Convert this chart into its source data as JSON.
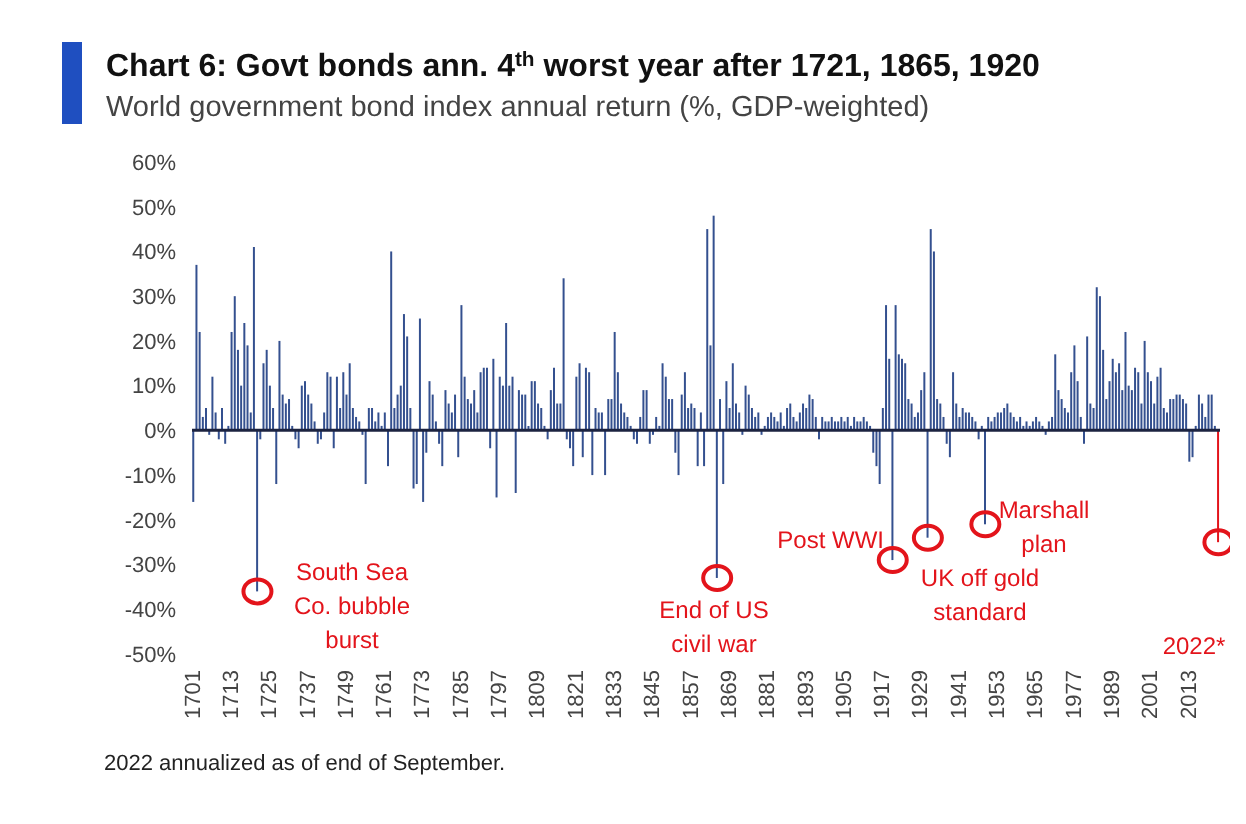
{
  "chart_data": {
    "type": "bar",
    "title": "Chart 6: Govt bonds ann. 4$^{th}$ worst year after 1721, 1865, 1920",
    "subtitle": "World government bond index annual return (%, GDP-weighted)",
    "annotations": [
      "South Sea Co. bubble burst",
      "End of US civil war",
      "Post WWI",
      "UK off gold standard",
      "Marshall plan",
      "2022*",
      "2022 annualized as of end of September."
    ],
    "categories": [
      "1701",
      null,
      null,
      null,
      null,
      null,
      null,
      null,
      null,
      null,
      null,
      null,
      "1713",
      null,
      null,
      null,
      null,
      null,
      null,
      null,
      null,
      null,
      null,
      null,
      "1725",
      null,
      null,
      null,
      null,
      null,
      null,
      null,
      null,
      null,
      null,
      null,
      "1737",
      null,
      null,
      null,
      null,
      null,
      null,
      null,
      null,
      null,
      null,
      null,
      "1749",
      null,
      null,
      null,
      null,
      null,
      null,
      null,
      null,
      null,
      null,
      null,
      "1761",
      null,
      null,
      null,
      null,
      null,
      null,
      null,
      null,
      null,
      null,
      null,
      "1773",
      null,
      null,
      null,
      null,
      null,
      null,
      null,
      null,
      null,
      null,
      null,
      "1785",
      null,
      null,
      null,
      null,
      null,
      null,
      null,
      null,
      null,
      null,
      null,
      "1797",
      null,
      null,
      null,
      null,
      null,
      null,
      null,
      null,
      null,
      null,
      null,
      "1809",
      null,
      null,
      null,
      null,
      null,
      null,
      null,
      null,
      null,
      null,
      null,
      "1821",
      null,
      null,
      null,
      null,
      null,
      null,
      null,
      null,
      null,
      null,
      null,
      "1833",
      null,
      null,
      null,
      null,
      null,
      null,
      null,
      null,
      null,
      null,
      null,
      "1845",
      null,
      null,
      null,
      null,
      null,
      null,
      null,
      null,
      null,
      null,
      null,
      "1857",
      null,
      null,
      null,
      null,
      null,
      null,
      null,
      null,
      null,
      null,
      null,
      "1869",
      null,
      null,
      null,
      null,
      null,
      null,
      null,
      null,
      null,
      null,
      null,
      "1881",
      null,
      null,
      null,
      null,
      null,
      null,
      null,
      null,
      null,
      null,
      null,
      "1893",
      null,
      null,
      null,
      null,
      null,
      null,
      null,
      null,
      null,
      null,
      null,
      "1905",
      null,
      null,
      null,
      null,
      null,
      null,
      null,
      null,
      null,
      null,
      null,
      "1917",
      null,
      null,
      null,
      null,
      null,
      null,
      null,
      null,
      null,
      null,
      null,
      "1929",
      null,
      null,
      null,
      null,
      null,
      null,
      null,
      null,
      null,
      null,
      null,
      "1941",
      null,
      null,
      null,
      null,
      null,
      null,
      null,
      null,
      null,
      null,
      null,
      "1953",
      null,
      null,
      null,
      null,
      null,
      null,
      null,
      null,
      null,
      null,
      null,
      "1965",
      null,
      null,
      null,
      null,
      null,
      null,
      null,
      null,
      null,
      null,
      null,
      "1977",
      null,
      null,
      null,
      null,
      null,
      null,
      null,
      null,
      null,
      null,
      null,
      "1989",
      null,
      null,
      null,
      null,
      null,
      null,
      null,
      null,
      null,
      null,
      null,
      "2001",
      null,
      null,
      null,
      null,
      null,
      null,
      null,
      null,
      null,
      null,
      null,
      "2013",
      null,
      null,
      null,
      null,
      null,
      null,
      null,
      null,
      null
    ],
    "values": [
      -16,
      37,
      22,
      3,
      5,
      -1,
      12,
      4,
      -2,
      5,
      -3,
      1,
      22,
      30,
      18,
      10,
      24,
      19,
      4,
      41,
      -36,
      -2,
      15,
      18,
      10,
      5,
      -12,
      20,
      8,
      6,
      7,
      1,
      -2,
      -4,
      10,
      11,
      8,
      6,
      2,
      -3,
      -2,
      4,
      13,
      12,
      -4,
      12,
      5,
      13,
      8,
      15,
      5,
      3,
      2,
      -1,
      -12,
      5,
      5,
      2,
      4,
      1,
      4,
      -8,
      40,
      5,
      8,
      10,
      26,
      21,
      5,
      -13,
      -12,
      25,
      -16,
      -5,
      11,
      8,
      2,
      -3,
      -8,
      9,
      6,
      4,
      8,
      -6,
      28,
      12,
      7,
      6,
      9,
      4,
      13,
      14,
      14,
      -4,
      16,
      -15,
      12,
      10,
      24,
      10,
      12,
      -14,
      9,
      8,
      8,
      1,
      11,
      11,
      6,
      5,
      1,
      -2,
      9,
      14,
      6,
      6,
      34,
      -2,
      -4,
      -8,
      12,
      15,
      -6,
      14,
      13,
      -10,
      5,
      4,
      4,
      -10,
      7,
      7,
      22,
      13,
      6,
      4,
      3,
      1,
      -2,
      -3,
      3,
      9,
      9,
      -3,
      -1,
      3,
      1,
      15,
      12,
      7,
      7,
      -5,
      -10,
      8,
      13,
      5,
      6,
      5,
      -8,
      4,
      -8,
      45,
      19,
      48,
      -33,
      7,
      -12,
      11,
      5,
      15,
      6,
      4,
      -1,
      10,
      8,
      5,
      3,
      4,
      -1,
      1,
      3,
      4,
      3,
      2,
      4,
      1,
      5,
      6,
      3,
      2,
      4,
      6,
      5,
      8,
      7,
      3,
      -2,
      3,
      2,
      2,
      3,
      2,
      2,
      3,
      2,
      3,
      1,
      3,
      2,
      2,
      3,
      2,
      1,
      -5,
      -8,
      -12,
      5,
      28,
      16,
      -29,
      28,
      17,
      16,
      15,
      7,
      6,
      3,
      4,
      9,
      13,
      -24,
      45,
      40,
      7,
      6,
      3,
      -3,
      -6,
      13,
      6,
      3,
      5,
      4,
      4,
      3,
      2,
      -2,
      1,
      -21,
      3,
      2,
      3,
      4,
      4,
      5,
      6,
      4,
      3,
      2,
      3,
      1,
      2,
      1,
      2,
      3,
      2,
      1,
      -1,
      2,
      3,
      17,
      9,
      7,
      5,
      4,
      13,
      19,
      11,
      3,
      -3,
      21,
      6,
      5,
      32,
      30,
      18,
      7,
      11,
      16,
      13,
      15,
      9,
      22,
      10,
      9,
      14,
      13,
      6,
      20,
      13,
      11,
      6,
      12,
      14,
      5,
      4,
      7,
      7,
      8,
      8,
      7,
      6,
      -7,
      -6,
      1,
      8,
      6,
      3,
      8,
      8,
      1,
      -25
    ],
    "colors": [
      "#34508f",
      "#34508f",
      "#34508f",
      "#34508f",
      "#34508f",
      "#34508f",
      "#34508f",
      "#34508f",
      "#34508f",
      "#34508f",
      "#34508f",
      "#34508f",
      "#34508f",
      "#34508f",
      "#34508f",
      "#34508f",
      "#34508f",
      "#34508f",
      "#34508f",
      "#34508f",
      "#34508f",
      "#34508f",
      "#34508f",
      "#34508f",
      "#34508f",
      "#34508f",
      "#34508f",
      "#34508f",
      "#34508f",
      "#34508f",
      "#34508f",
      "#34508f",
      "#34508f",
      "#34508f",
      "#34508f",
      "#34508f",
      "#34508f",
      "#34508f",
      "#34508f",
      "#34508f",
      "#34508f",
      "#34508f",
      "#34508f",
      "#34508f",
      "#34508f",
      "#34508f",
      "#34508f",
      "#34508f",
      "#34508f",
      "#34508f",
      "#34508f",
      "#34508f",
      "#34508f",
      "#34508f",
      "#34508f",
      "#34508f",
      "#34508f",
      "#34508f",
      "#34508f",
      "#34508f",
      "#34508f",
      "#34508f",
      "#34508f",
      "#34508f",
      "#34508f",
      "#34508f",
      "#34508f",
      "#34508f",
      "#34508f",
      "#34508f",
      "#34508f",
      "#34508f",
      "#34508f",
      "#34508f",
      "#34508f",
      "#34508f",
      "#34508f",
      "#34508f",
      "#34508f",
      "#34508f",
      "#34508f",
      "#34508f",
      "#34508f",
      "#34508f",
      "#34508f",
      "#34508f",
      "#34508f",
      "#34508f",
      "#34508f",
      "#34508f",
      "#34508f",
      "#34508f",
      "#34508f",
      "#34508f",
      "#34508f",
      "#34508f",
      "#34508f",
      "#34508f",
      "#34508f",
      "#34508f",
      "#34508f",
      "#34508f",
      "#34508f",
      "#34508f",
      "#34508f",
      "#34508f",
      "#34508f",
      "#34508f",
      "#34508f",
      "#34508f",
      "#34508f",
      "#34508f",
      "#34508f",
      "#34508f",
      "#34508f",
      "#34508f",
      "#34508f",
      "#34508f",
      "#34508f",
      "#34508f",
      "#34508f",
      "#34508f",
      "#34508f",
      "#34508f",
      "#34508f",
      "#34508f",
      "#34508f",
      "#34508f",
      "#34508f",
      "#34508f",
      "#34508f",
      "#34508f",
      "#34508f",
      "#34508f",
      "#34508f",
      "#34508f",
      "#34508f",
      "#34508f",
      "#34508f",
      "#34508f",
      "#34508f",
      "#34508f",
      "#34508f",
      "#34508f",
      "#34508f",
      "#34508f",
      "#34508f",
      "#34508f",
      "#34508f",
      "#34508f",
      "#34508f",
      "#34508f",
      "#34508f",
      "#34508f",
      "#34508f",
      "#34508f",
      "#34508f",
      "#34508f",
      "#34508f",
      "#34508f",
      "#34508f",
      "#34508f",
      "#34508f",
      "#34508f",
      "#34508f",
      "#34508f",
      "#34508f",
      "#34508f",
      "#34508f",
      "#34508f",
      "#34508f",
      "#34508f",
      "#34508f",
      "#34508f",
      "#34508f",
      "#34508f",
      "#34508f",
      "#34508f",
      "#34508f",
      "#34508f",
      "#34508f",
      "#34508f",
      "#34508f",
      "#34508f",
      "#34508f",
      "#34508f",
      "#34508f",
      "#34508f",
      "#34508f",
      "#34508f",
      "#34508f",
      "#34508f",
      "#34508f",
      "#34508f",
      "#34508f",
      "#34508f",
      "#34508f",
      "#34508f",
      "#34508f",
      "#34508f",
      "#34508f",
      "#34508f",
      "#34508f",
      "#34508f",
      "#34508f",
      "#34508f",
      "#34508f",
      "#34508f",
      "#34508f",
      "#34508f",
      "#34508f",
      "#34508f",
      "#34508f",
      "#34508f",
      "#34508f",
      "#34508f",
      "#34508f",
      "#34508f",
      "#34508f",
      "#34508f",
      "#34508f",
      "#34508f",
      "#34508f",
      "#34508f",
      "#34508f",
      "#34508f",
      "#34508f",
      "#34508f",
      "#34508f",
      "#34508f",
      "#34508f",
      "#34508f",
      "#34508f",
      "#34508f",
      "#34508f",
      "#34508f",
      "#34508f",
      "#34508f",
      "#34508f",
      "#34508f",
      "#34508f",
      "#34508f",
      "#34508f",
      "#34508f",
      "#34508f",
      "#34508f",
      "#34508f",
      "#34508f",
      "#34508f",
      "#34508f",
      "#34508f",
      "#34508f",
      "#34508f",
      "#34508f",
      "#34508f",
      "#34508f",
      "#34508f",
      "#34508f",
      "#34508f",
      "#34508f",
      "#34508f",
      "#34508f",
      "#34508f",
      "#34508f",
      "#34508f",
      "#34508f",
      "#34508f",
      "#34508f",
      "#34508f",
      "#34508f",
      "#34508f",
      "#34508f",
      "#34508f",
      "#34508f",
      "#34508f",
      "#34508f",
      "#34508f",
      "#34508f",
      "#34508f",
      "#34508f",
      "#34508f",
      "#34508f",
      "#34508f",
      "#34508f",
      "#34508f",
      "#34508f",
      "#34508f",
      "#34508f",
      "#34508f",
      "#34508f",
      "#34508f",
      "#34508f",
      "#34508f",
      "#34508f",
      "#34508f",
      "#34508f",
      "#34508f",
      "#34508f",
      "#34508f",
      "#34508f",
      "#34508f",
      "#34508f",
      "#34508f",
      "#34508f",
      "#34508f",
      "#34508f",
      "#34508f",
      "#34508f",
      "#34508f",
      "#34508f",
      "#34508f",
      "#34508f",
      "#34508f",
      "#34508f",
      "#34508f",
      "#34508f",
      "#34508f",
      "#34508f",
      "#34508f",
      "#34508f",
      "#34508f",
      "#e3141b"
    ],
    "ylim": [
      -50,
      60
    ],
    "yticks": [
      {
        "value": -50,
        "label": "-50%"
      },
      {
        "value": -40,
        "label": "-40%"
      },
      {
        "value": -30,
        "label": "-30%"
      },
      {
        "value": -20,
        "label": "-20%"
      },
      {
        "value": -10,
        "label": "-10%"
      },
      {
        "value": 0,
        "label": "0%"
      },
      {
        "value": 10,
        "label": "10%"
      },
      {
        "value": 20,
        "label": "20%"
      },
      {
        "value": 30,
        "label": "30%"
      },
      {
        "value": 40,
        "label": "40%"
      },
      {
        "value": 50,
        "label": "50%"
      },
      {
        "value": 60,
        "label": "60%"
      }
    ],
    "ref_lines": [
      {
        "axis": "y",
        "value": 0,
        "color": "#1c2340"
      }
    ],
    "grid": false,
    "legend": false
  }
}
